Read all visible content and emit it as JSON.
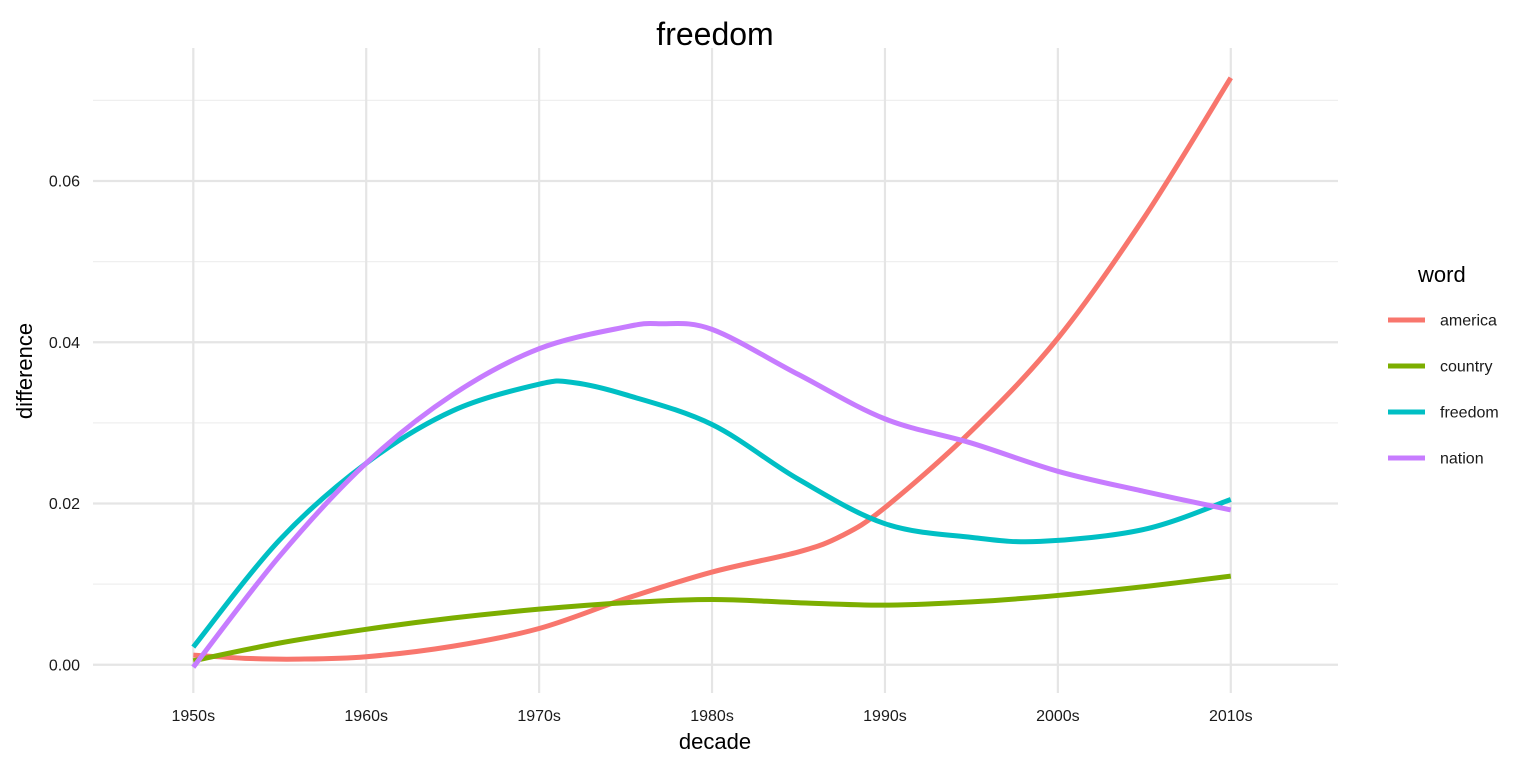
{
  "chart_data": {
    "type": "line",
    "title": "freedom",
    "xlabel": "decade",
    "ylabel": "difference",
    "categories": [
      "1950s",
      "1960s",
      "1970s",
      "1980s",
      "1990s",
      "2000s",
      "2010s"
    ],
    "x": [
      1950,
      1960,
      1970,
      1980,
      1990,
      2000,
      2010
    ],
    "xlim": [
      1944.2,
      2016.2
    ],
    "ylim": [
      -0.0035,
      0.0765
    ],
    "yticks": [
      0.0,
      0.02,
      0.04,
      0.06
    ],
    "ytick_labels": [
      "0.00",
      "0.02",
      "0.04",
      "0.06"
    ],
    "grid": true,
    "legend": {
      "title": "word",
      "placement": "right"
    },
    "series": [
      {
        "name": "america",
        "color": "#F8766D",
        "points": [
          [
            1950,
            0.0012
          ],
          [
            1953,
            0.0008
          ],
          [
            1956,
            0.0007
          ],
          [
            1960,
            0.001
          ],
          [
            1965,
            0.0023
          ],
          [
            1970,
            0.0045
          ],
          [
            1975,
            0.0082
          ],
          [
            1980,
            0.0115
          ],
          [
            1985,
            0.014
          ],
          [
            1987.5,
            0.016
          ],
          [
            1990,
            0.0195
          ],
          [
            1995,
            0.029
          ],
          [
            2000,
            0.0405
          ],
          [
            2005,
            0.0555
          ],
          [
            2010,
            0.0728
          ]
        ]
      },
      {
        "name": "country",
        "color": "#7CAE00",
        "points": [
          [
            1950,
            0.0005
          ],
          [
            1955,
            0.0027
          ],
          [
            1960,
            0.0044
          ],
          [
            1965,
            0.0058
          ],
          [
            1970,
            0.0069
          ],
          [
            1975,
            0.0077
          ],
          [
            1980,
            0.0081
          ],
          [
            1985,
            0.0077
          ],
          [
            1990,
            0.0074
          ],
          [
            1995,
            0.0078
          ],
          [
            2000,
            0.0086
          ],
          [
            2005,
            0.0097
          ],
          [
            2010,
            0.011
          ]
        ]
      },
      {
        "name": "freedom",
        "color": "#00BFC4",
        "points": [
          [
            1950,
            0.0022
          ],
          [
            1955,
            0.0155
          ],
          [
            1960,
            0.025
          ],
          [
            1965,
            0.0315
          ],
          [
            1970,
            0.0348
          ],
          [
            1972,
            0.035
          ],
          [
            1975,
            0.0335
          ],
          [
            1980,
            0.0298
          ],
          [
            1985,
            0.023
          ],
          [
            1990,
            0.0175
          ],
          [
            1995,
            0.0158
          ],
          [
            1999,
            0.0153
          ],
          [
            2005,
            0.0168
          ],
          [
            2010,
            0.0205
          ]
        ]
      },
      {
        "name": "nation",
        "color": "#C77CFF",
        "points": [
          [
            1950,
            -0.0003
          ],
          [
            1955,
            0.0135
          ],
          [
            1960,
            0.025
          ],
          [
            1965,
            0.0335
          ],
          [
            1970,
            0.0392
          ],
          [
            1975,
            0.0419
          ],
          [
            1977,
            0.0423
          ],
          [
            1980,
            0.0416
          ],
          [
            1985,
            0.036
          ],
          [
            1990,
            0.0305
          ],
          [
            1995,
            0.0275
          ],
          [
            2000,
            0.024
          ],
          [
            2005,
            0.0215
          ],
          [
            2010,
            0.0192
          ]
        ]
      }
    ]
  }
}
